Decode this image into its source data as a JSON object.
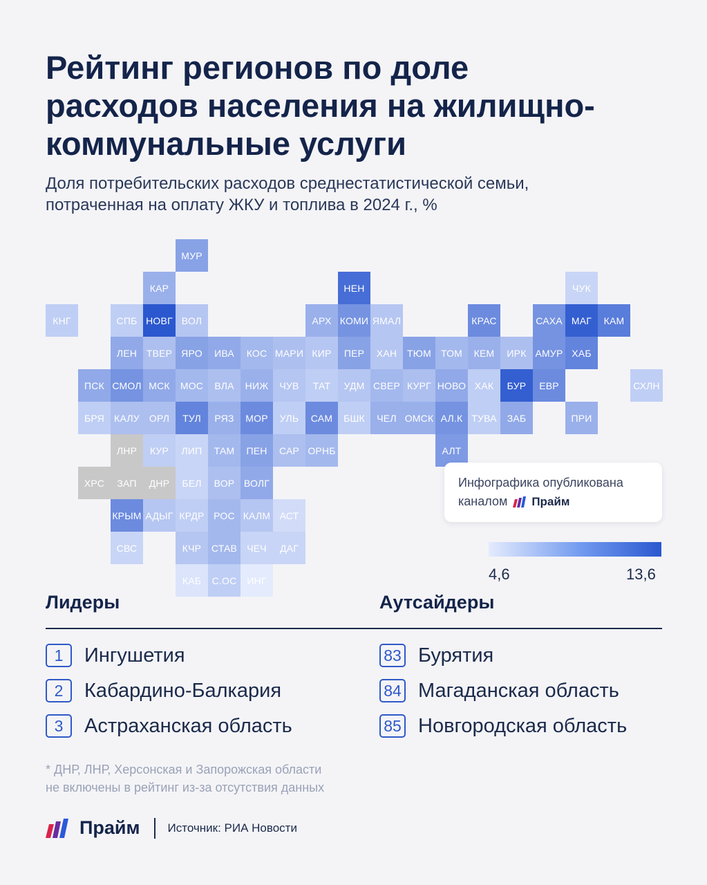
{
  "title": "Рейтинг регионов по доле\nрасходов населения на жилищно-\nкоммунальные услуги",
  "subtitle": "Доля потребительских расходов среднестатистической семьи,\nпотраченная на оплату ЖКУ и топлива в 2024 г., %",
  "map_tiles": [
    {
      "code": "МУР",
      "row": 0,
      "col": 5,
      "level": 0.5
    },
    {
      "code": "КАР",
      "row": 1,
      "col": 4,
      "level": 0.4
    },
    {
      "code": "НЕН",
      "row": 1,
      "col": 10,
      "level": 0.85
    },
    {
      "code": "ЧУК",
      "row": 1,
      "col": 17,
      "level": 0.15
    },
    {
      "code": "КНГ",
      "row": 2,
      "col": 1,
      "level": 0.2
    },
    {
      "code": "СПБ",
      "row": 2,
      "col": 3,
      "level": 0.2
    },
    {
      "code": "НОВГ",
      "row": 2,
      "col": 4,
      "level": 1.0
    },
    {
      "code": "ВОЛ",
      "row": 2,
      "col": 5,
      "level": 0.25
    },
    {
      "code": "АРХ",
      "row": 2,
      "col": 9,
      "level": 0.4
    },
    {
      "code": "КОМИ",
      "row": 2,
      "col": 10,
      "level": 0.6
    },
    {
      "code": "ЯМАЛ",
      "row": 2,
      "col": 11,
      "level": 0.25
    },
    {
      "code": "КРАС",
      "row": 2,
      "col": 14,
      "level": 0.65
    },
    {
      "code": "САХА",
      "row": 2,
      "col": 16,
      "level": 0.6
    },
    {
      "code": "МАГ",
      "row": 2,
      "col": 17,
      "level": 0.95
    },
    {
      "code": "КАМ",
      "row": 2,
      "col": 18,
      "level": 0.75
    },
    {
      "code": "ЛЕН",
      "row": 3,
      "col": 3,
      "level": 0.45
    },
    {
      "code": "ТВЕР",
      "row": 3,
      "col": 4,
      "level": 0.3
    },
    {
      "code": "ЯРО",
      "row": 3,
      "col": 5,
      "level": 0.5
    },
    {
      "code": "ИВА",
      "row": 3,
      "col": 6,
      "level": 0.45
    },
    {
      "code": "КОС",
      "row": 3,
      "col": 7,
      "level": 0.35
    },
    {
      "code": "МАРИ",
      "row": 3,
      "col": 8,
      "level": 0.3
    },
    {
      "code": "КИР",
      "row": 3,
      "col": 9,
      "level": 0.25
    },
    {
      "code": "ПЕР",
      "row": 3,
      "col": 10,
      "level": 0.5
    },
    {
      "code": "ХАН",
      "row": 3,
      "col": 11,
      "level": 0.25
    },
    {
      "code": "ТЮМ",
      "row": 3,
      "col": 12,
      "level": 0.5
    },
    {
      "code": "ТОМ",
      "row": 3,
      "col": 13,
      "level": 0.35
    },
    {
      "code": "КЕМ",
      "row": 3,
      "col": 14,
      "level": 0.4
    },
    {
      "code": "ИРК",
      "row": 3,
      "col": 15,
      "level": 0.3
    },
    {
      "code": "АМУР",
      "row": 3,
      "col": 16,
      "level": 0.6
    },
    {
      "code": "ХАБ",
      "row": 3,
      "col": 17,
      "level": 0.7
    },
    {
      "code": "ПСК",
      "row": 4,
      "col": 2,
      "level": 0.45
    },
    {
      "code": "СМОЛ",
      "row": 4,
      "col": 3,
      "level": 0.6
    },
    {
      "code": "МСК",
      "row": 4,
      "col": 4,
      "level": 0.45
    },
    {
      "code": "МОС",
      "row": 4,
      "col": 5,
      "level": 0.35
    },
    {
      "code": "ВЛА",
      "row": 4,
      "col": 6,
      "level": 0.3
    },
    {
      "code": "НИЖ",
      "row": 4,
      "col": 7,
      "level": 0.4
    },
    {
      "code": "ЧУВ",
      "row": 4,
      "col": 8,
      "level": 0.25
    },
    {
      "code": "ТАТ",
      "row": 4,
      "col": 9,
      "level": 0.2
    },
    {
      "code": "УДМ",
      "row": 4,
      "col": 10,
      "level": 0.25
    },
    {
      "code": "СВЕР",
      "row": 4,
      "col": 11,
      "level": 0.35
    },
    {
      "code": "КУРГ",
      "row": 4,
      "col": 12,
      "level": 0.3
    },
    {
      "code": "НОВО",
      "row": 4,
      "col": 13,
      "level": 0.45
    },
    {
      "code": "ХАК",
      "row": 4,
      "col": 14,
      "level": 0.2
    },
    {
      "code": "БУР",
      "row": 4,
      "col": 15,
      "level": 0.95
    },
    {
      "code": "ЕВР",
      "row": 4,
      "col": 16,
      "level": 0.65
    },
    {
      "code": "СХЛН",
      "row": 4,
      "col": 19,
      "level": 0.2
    },
    {
      "code": "БРЯ",
      "row": 5,
      "col": 2,
      "level": 0.2
    },
    {
      "code": "КАЛУ",
      "row": 5,
      "col": 3,
      "level": 0.3
    },
    {
      "code": "ОРЛ",
      "row": 5,
      "col": 4,
      "level": 0.3
    },
    {
      "code": "ТУЛ",
      "row": 5,
      "col": 5,
      "level": 0.7
    },
    {
      "code": "РЯЗ",
      "row": 5,
      "col": 6,
      "level": 0.4
    },
    {
      "code": "МОР",
      "row": 5,
      "col": 7,
      "level": 0.65
    },
    {
      "code": "УЛЬ",
      "row": 5,
      "col": 8,
      "level": 0.2
    },
    {
      "code": "САМ",
      "row": 5,
      "col": 9,
      "level": 0.65
    },
    {
      "code": "БШК",
      "row": 5,
      "col": 10,
      "level": 0.2
    },
    {
      "code": "ЧЕЛ",
      "row": 5,
      "col": 11,
      "level": 0.4
    },
    {
      "code": "ОМСК",
      "row": 5,
      "col": 12,
      "level": 0.4
    },
    {
      "code": "АЛ.К",
      "row": 5,
      "col": 13,
      "level": 0.6
    },
    {
      "code": "ТУВА",
      "row": 5,
      "col": 14,
      "level": 0.2
    },
    {
      "code": "ЗАБ",
      "row": 5,
      "col": 15,
      "level": 0.45
    },
    {
      "code": "ПРИ",
      "row": 5,
      "col": 17,
      "level": 0.4
    },
    {
      "code": "ЛНР",
      "row": 6,
      "col": 3,
      "level": "none"
    },
    {
      "code": "КУР",
      "row": 6,
      "col": 4,
      "level": 0.2
    },
    {
      "code": "ЛИП",
      "row": 6,
      "col": 5,
      "level": 0.15
    },
    {
      "code": "ТАМ",
      "row": 6,
      "col": 6,
      "level": 0.35
    },
    {
      "code": "ПЕН",
      "row": 6,
      "col": 7,
      "level": 0.5
    },
    {
      "code": "САР",
      "row": 6,
      "col": 8,
      "level": 0.3
    },
    {
      "code": "ОРНБ",
      "row": 6,
      "col": 9,
      "level": 0.35
    },
    {
      "code": "АЛТ",
      "row": 6,
      "col": 13,
      "level": 0.55
    },
    {
      "code": "ХРС",
      "row": 7,
      "col": 2,
      "level": "none"
    },
    {
      "code": "ЗАП",
      "row": 7,
      "col": 3,
      "level": "none"
    },
    {
      "code": "ДНР",
      "row": 7,
      "col": 4,
      "level": "none"
    },
    {
      "code": "БЕЛ",
      "row": 7,
      "col": 5,
      "level": 0.15
    },
    {
      "code": "ВОР",
      "row": 7,
      "col": 6,
      "level": 0.3
    },
    {
      "code": "ВОЛГ",
      "row": 7,
      "col": 7,
      "level": 0.45
    },
    {
      "code": "КРЫМ",
      "row": 8,
      "col": 3,
      "level": 0.65
    },
    {
      "code": "АДЫГ",
      "row": 8,
      "col": 4,
      "level": 0.25
    },
    {
      "code": "КРДР",
      "row": 8,
      "col": 5,
      "level": 0.2
    },
    {
      "code": "РОС",
      "row": 8,
      "col": 6,
      "level": 0.35
    },
    {
      "code": "КАЛМ",
      "row": 8,
      "col": 7,
      "level": 0.25
    },
    {
      "code": "АСТ",
      "row": 8,
      "col": 8,
      "level": 0.1
    },
    {
      "code": "СВС",
      "row": 9,
      "col": 3,
      "level": 0.15
    },
    {
      "code": "КЧР",
      "row": 9,
      "col": 5,
      "level": 0.25
    },
    {
      "code": "СТАВ",
      "row": 9,
      "col": 6,
      "level": 0.35
    },
    {
      "code": "ЧЕЧ",
      "row": 9,
      "col": 7,
      "level": 0.15
    },
    {
      "code": "ДАГ",
      "row": 9,
      "col": 8,
      "level": 0.15
    },
    {
      "code": "КАБ",
      "row": 10,
      "col": 5,
      "level": 0.05
    },
    {
      "code": "С.ОС",
      "row": 10,
      "col": 6,
      "level": 0.2
    },
    {
      "code": "ИНГ",
      "row": 10,
      "col": 7,
      "level": 0.0
    }
  ],
  "callout": {
    "line1": "Инфографика опубликована",
    "line2": "каналом",
    "brand": "Прайм"
  },
  "legend": {
    "min": "4,6",
    "max": "13,6"
  },
  "leaders": {
    "heading": "Лидеры",
    "items": [
      {
        "rank": "1",
        "name": "Ингушетия"
      },
      {
        "rank": "2",
        "name": "Кабардино-Балкария"
      },
      {
        "rank": "3",
        "name": "Астраханская область"
      }
    ]
  },
  "outsiders": {
    "heading": "Аутсайдеры",
    "items": [
      {
        "rank": "83",
        "name": "Бурятия"
      },
      {
        "rank": "84",
        "name": "Магаданская область"
      },
      {
        "rank": "85",
        "name": "Новгородская область"
      }
    ]
  },
  "footnote": "* ДНР, ЛНР, Херсонская и Запорожская области\nне включены в рейтинг из-за отсутствия данных",
  "footer": {
    "brand": "Прайм",
    "source": "Источник: РИА Новости"
  },
  "colors": {
    "scale_low": "#e4ebfd",
    "scale_high": "#2b58cf",
    "no_data": "#c8c8c8",
    "accent": "#2f59c8",
    "brand_red": "#d8244b",
    "brand_purple": "#6a2ca0",
    "brand_blue": "#2b59d9"
  }
}
